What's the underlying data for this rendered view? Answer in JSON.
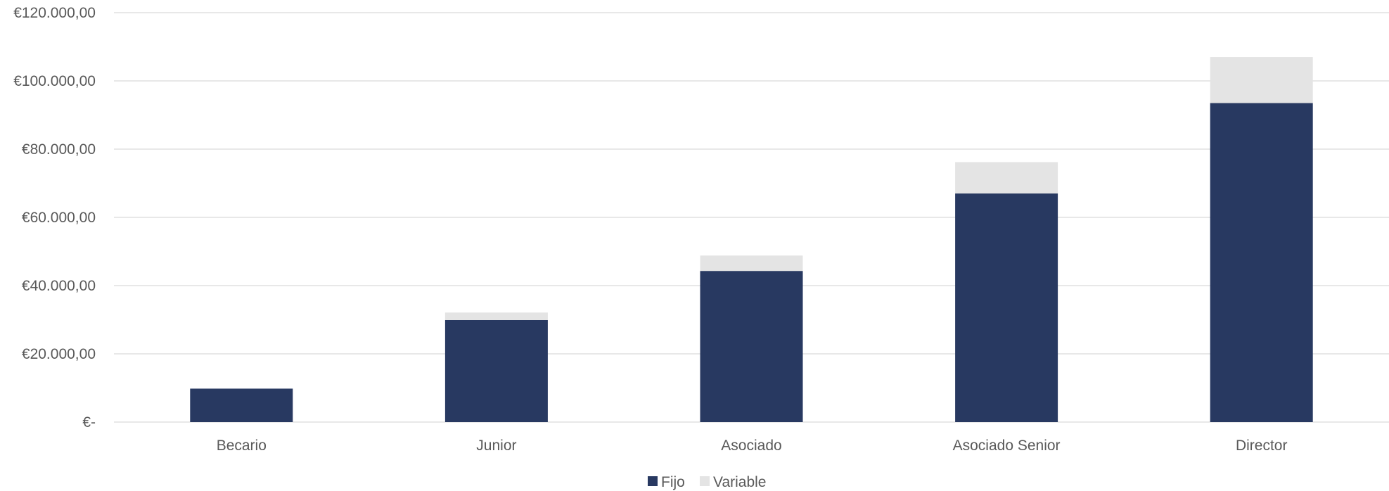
{
  "chart_data": {
    "type": "bar",
    "stacked": true,
    "categories": [
      "Becario",
      "Junior",
      "Asociado",
      "Asociado Senior",
      "Director"
    ],
    "series": [
      {
        "name": "Fijo",
        "values": [
          9800,
          29900,
          44300,
          67000,
          93500
        ],
        "color": "#283961"
      },
      {
        "name": "Variable",
        "values": [
          0,
          2200,
          4500,
          9200,
          13500
        ],
        "color": "#e4e4e4"
      }
    ],
    "yticks": [
      "€-",
      "€20.000,00",
      "€40.000,00",
      "€60.000,00",
      "€80.000,00",
      "€100.000,00",
      "€120.000,00"
    ],
    "ylim": [
      0,
      120000
    ],
    "ystep": 20000,
    "grid": true,
    "grid_color": "#d9d9d9",
    "legend": "bottom",
    "title": "",
    "xlabel": "",
    "ylabel": ""
  }
}
